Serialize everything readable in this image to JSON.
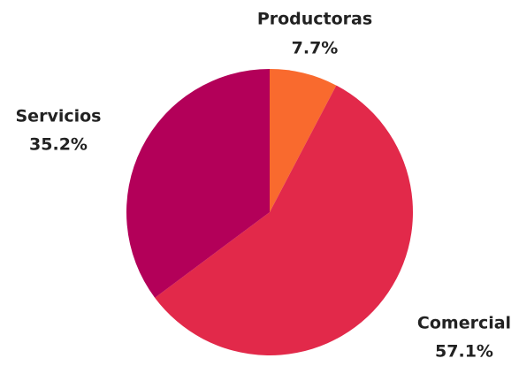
{
  "chart_data": {
    "type": "pie",
    "categories": [
      "Productoras",
      "Comercial",
      "Servicios"
    ],
    "values": [
      7.7,
      57.1,
      35.2
    ],
    "value_labels": [
      "7.7%",
      "57.1%",
      "35.2%"
    ],
    "colors": [
      "#f96a2e",
      "#e2294a",
      "#b30059"
    ]
  }
}
